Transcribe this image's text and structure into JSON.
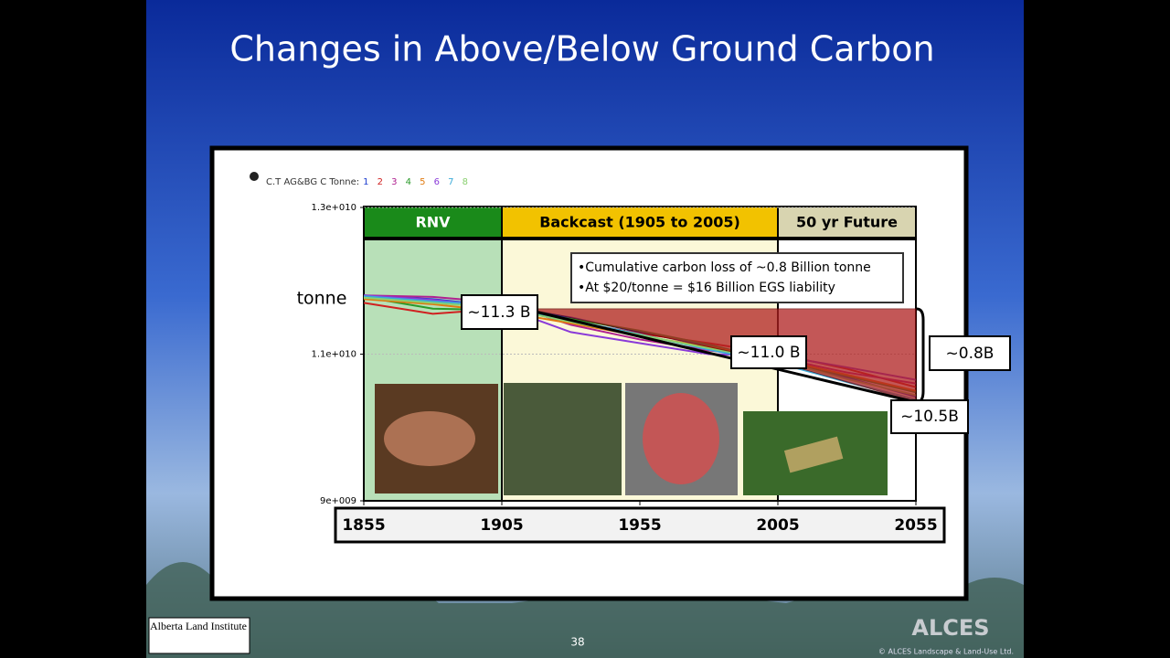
{
  "chart_data": {
    "type": "line",
    "title": "Changes in Above/Below Ground Carbon",
    "legend_title": "C.T AG&BG C Tonne:",
    "y_label": "tonne",
    "periods": [
      "RNV",
      "Backcast (1905 to 2005)",
      "50 yr Future"
    ],
    "x": [
      1855,
      1880,
      1905,
      1930,
      1955,
      1980,
      2005,
      2030,
      2055
    ],
    "xlim": [
      1855,
      2055
    ],
    "xticks": [
      1855,
      1905,
      1955,
      2005,
      2055
    ],
    "ylim": [
      9000000000,
      13000000000
    ],
    "yticks": [
      {
        "value": 9000000000,
        "label": "9e+009"
      },
      {
        "value": 11000000000,
        "label": "1.1e+010"
      },
      {
        "value": 13000000000,
        "label": "1.3e+010"
      }
    ],
    "series": [
      {
        "name": "1",
        "color": "#1f3fd0",
        "values": [
          11800000000,
          11750000000,
          11650000000,
          11500000000,
          11300000000,
          11120000000,
          10920000000,
          10680000000,
          10420000000
        ]
      },
      {
        "name": "2",
        "color": "#d02020",
        "values": [
          11700000000,
          11550000000,
          11620000000,
          11450000000,
          11280000000,
          11150000000,
          11000000000,
          10800000000,
          10550000000
        ]
      },
      {
        "name": "3",
        "color": "#b02090",
        "values": [
          11800000000,
          11780000000,
          11700000000,
          11400000000,
          11200000000,
          11050000000,
          10950000000,
          10750000000,
          10600000000
        ]
      },
      {
        "name": "4",
        "color": "#2a9a2a",
        "values": [
          11780000000,
          11620000000,
          11600000000,
          11480000000,
          11320000000,
          11130000000,
          10900000000,
          10700000000,
          10480000000
        ]
      },
      {
        "name": "5",
        "color": "#e07a10",
        "values": [
          11750000000,
          11680000000,
          11580000000,
          11420000000,
          11250000000,
          11100000000,
          10930000000,
          10720000000,
          10500000000
        ]
      },
      {
        "name": "6",
        "color": "#8a3ad8",
        "values": [
          11800000000,
          11740000000,
          11640000000,
          11300000000,
          11150000000,
          11000000000,
          10980000000,
          10820000000,
          10650000000
        ]
      },
      {
        "name": "7",
        "color": "#3aaad8",
        "values": [
          11790000000,
          11720000000,
          11660000000,
          11460000000,
          11270000000,
          11060000000,
          10880000000,
          10620000000,
          10380000000
        ]
      },
      {
        "name": "8",
        "color": "#8ad070",
        "values": [
          11770000000,
          11700000000,
          11630000000,
          11440000000,
          11260000000,
          11080000000,
          10910000000,
          10660000000,
          10440000000
        ]
      }
    ],
    "annotations": {
      "start": "~11.3 B",
      "present": "~11.0 B",
      "future": "~10.5B",
      "loss": "~0.8B",
      "bullets": [
        "•Cumulative carbon loss of ~0.8 Billion tonne",
        "•At $20/tonne = $16 Billion EGS liability"
      ]
    }
  },
  "footer": {
    "institute": "Alberta Land Institute",
    "page": "38",
    "logo": "ALCES",
    "copyright": "© ALCES Landscape & Land-Use Ltd."
  }
}
